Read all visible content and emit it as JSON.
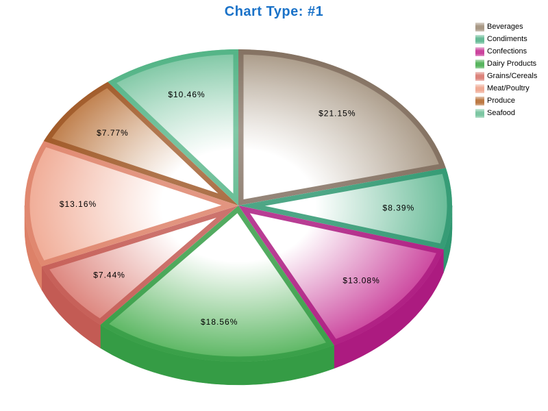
{
  "page": {
    "background": "#ffffff"
  },
  "chart_data": {
    "type": "pie",
    "title": "Chart Type: #1",
    "title_color": "#1a72c8",
    "label_color": "#000000",
    "legend_position": "right",
    "start_angle_deg": -90,
    "direction": "clockwise",
    "style": "3d-beveled-glossy",
    "series": [
      {
        "name": "Beverages",
        "value": 21.15,
        "label": "$21.15%",
        "color": "#a89885",
        "dark": "#7f6c5d"
      },
      {
        "name": "Condiments",
        "value": 8.39,
        "label": "$8.39%",
        "color": "#66bb96",
        "dark": "#2e9670"
      },
      {
        "name": "Confections",
        "value": 13.08,
        "label": "$13.08%",
        "color": "#cb449d",
        "dark": "#ac1b80"
      },
      {
        "name": "Dairy Products",
        "value": 18.56,
        "label": "$18.56%",
        "color": "#58b55f",
        "dark": "#359c45"
      },
      {
        "name": "Grains/Cereals",
        "value": 7.44,
        "label": "$7.44%",
        "color": "#dc837b",
        "dark": "#c35b54"
      },
      {
        "name": "Meat/Poultry",
        "value": 13.16,
        "label": "$13.16%",
        "color": "#f0ab95",
        "dark": "#dd8168"
      },
      {
        "name": "Produce",
        "value": 7.77,
        "label": "$7.77%",
        "color": "#bd7a45",
        "dark": "#9c5523"
      },
      {
        "name": "Seafood",
        "value": 10.46,
        "label": "$10.46%",
        "color": "#7cc6a2",
        "dark": "#4db183"
      }
    ]
  }
}
